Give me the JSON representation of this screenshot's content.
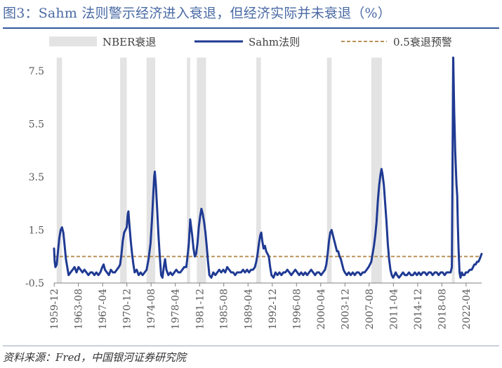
{
  "title": "图3：Sahm 法则警示经济进入衰退，但经济实际并未衰退（%）",
  "source": "资料来源：Fred，中国银河证券研究院",
  "chart_data": {
    "type": "line",
    "ylim": [
      -0.5,
      8.0
    ],
    "yticks": [
      -0.5,
      1.5,
      3.5,
      5.5,
      7.5
    ],
    "ytick_labels": [
      "-0.5",
      "1.5",
      "3.5",
      "5.5",
      "7.5"
    ],
    "xlim": [
      1959.9,
      2024.6
    ],
    "xticks": [
      1959.92,
      1963.58,
      1967.25,
      1970.92,
      1974.58,
      1978.25,
      1981.92,
      1985.58,
      1989.25,
      1992.92,
      1996.58,
      2000.25,
      2003.92,
      2007.58,
      2011.25,
      2014.92,
      2018.58,
      2022.25
    ],
    "xtick_labels": [
      "1959-12",
      "1963-08",
      "1967-04",
      "1970-12",
      "1974-08",
      "1978-04",
      "1981-12",
      "1985-08",
      "1989-04",
      "1992-12",
      "1996-08",
      "2000-04",
      "2003-12",
      "2007-08",
      "2011-04",
      "2014-12",
      "2018-08",
      "2022-04"
    ],
    "legend": {
      "position": "top",
      "items": [
        "NBER衰退",
        "Sahm法则",
        "0.5衰退预警"
      ]
    },
    "recessions": [
      [
        1960.3,
        1961.1
      ],
      [
        1969.9,
        1970.9
      ],
      [
        1973.9,
        1975.2
      ],
      [
        1980.0,
        1980.5
      ],
      [
        1981.5,
        1982.9
      ],
      [
        1990.5,
        1991.2
      ],
      [
        2001.2,
        2001.9
      ],
      [
        2007.9,
        2009.5
      ],
      [
        2020.1,
        2020.4
      ]
    ],
    "threshold": {
      "name": "0.5衰退预警",
      "value": 0.5,
      "color": "#b8925a"
    },
    "colors": {
      "line": "#1f3a93",
      "recession": "#e3e3e3",
      "axis": "#7f7f7f"
    },
    "series": [
      {
        "name": "Sahm法则",
        "points": [
          [
            1959.9,
            0.8
          ],
          [
            1960.0,
            0.3
          ],
          [
            1960.1,
            0.1
          ],
          [
            1960.3,
            0.2
          ],
          [
            1960.5,
            0.7
          ],
          [
            1960.7,
            1.2
          ],
          [
            1960.9,
            1.5
          ],
          [
            1961.1,
            1.6
          ],
          [
            1961.3,
            1.4
          ],
          [
            1961.5,
            0.9
          ],
          [
            1961.7,
            0.4
          ],
          [
            1961.9,
            0.1
          ],
          [
            1962.1,
            -0.2
          ],
          [
            1962.4,
            -0.1
          ],
          [
            1962.7,
            0.0
          ],
          [
            1963.0,
            0.1
          ],
          [
            1963.3,
            -0.1
          ],
          [
            1963.6,
            0.1
          ],
          [
            1963.9,
            0.0
          ],
          [
            1964.2,
            -0.1
          ],
          [
            1964.5,
            0.0
          ],
          [
            1964.8,
            -0.1
          ],
          [
            1965.1,
            -0.2
          ],
          [
            1965.4,
            -0.1
          ],
          [
            1965.7,
            -0.1
          ],
          [
            1966.0,
            -0.2
          ],
          [
            1966.3,
            -0.1
          ],
          [
            1966.6,
            -0.2
          ],
          [
            1966.9,
            -0.1
          ],
          [
            1967.2,
            0.1
          ],
          [
            1967.4,
            0.2
          ],
          [
            1967.6,
            0.0
          ],
          [
            1967.9,
            -0.1
          ],
          [
            1968.2,
            -0.2
          ],
          [
            1968.5,
            0.0
          ],
          [
            1968.8,
            -0.1
          ],
          [
            1969.1,
            -0.1
          ],
          [
            1969.4,
            0.0
          ],
          [
            1969.7,
            0.1
          ],
          [
            1969.9,
            0.2
          ],
          [
            1970.1,
            0.6
          ],
          [
            1970.3,
            1.1
          ],
          [
            1970.5,
            1.4
          ],
          [
            1970.7,
            1.5
          ],
          [
            1970.9,
            1.6
          ],
          [
            1971.05,
            2.1
          ],
          [
            1971.15,
            2.2
          ],
          [
            1971.3,
            1.7
          ],
          [
            1971.5,
            1.1
          ],
          [
            1971.7,
            0.6
          ],
          [
            1971.9,
            0.2
          ],
          [
            1972.1,
            -0.1
          ],
          [
            1972.4,
            0.0
          ],
          [
            1972.7,
            -0.2
          ],
          [
            1973.0,
            -0.1
          ],
          [
            1973.3,
            -0.2
          ],
          [
            1973.6,
            -0.1
          ],
          [
            1973.9,
            0.0
          ],
          [
            1974.2,
            0.4
          ],
          [
            1974.5,
            1.0
          ],
          [
            1974.7,
            1.8
          ],
          [
            1974.9,
            2.8
          ],
          [
            1975.05,
            3.5
          ],
          [
            1975.15,
            3.7
          ],
          [
            1975.3,
            3.2
          ],
          [
            1975.5,
            2.3
          ],
          [
            1975.7,
            1.3
          ],
          [
            1975.9,
            0.5
          ],
          [
            1976.1,
            -0.2
          ],
          [
            1976.3,
            -0.3
          ],
          [
            1976.5,
            0.1
          ],
          [
            1976.7,
            0.4
          ],
          [
            1976.9,
            0.0
          ],
          [
            1977.2,
            -0.2
          ],
          [
            1977.5,
            -0.1
          ],
          [
            1977.8,
            -0.2
          ],
          [
            1978.1,
            -0.1
          ],
          [
            1978.4,
            0.0
          ],
          [
            1978.7,
            -0.1
          ],
          [
            1979.0,
            -0.1
          ],
          [
            1979.3,
            0.0
          ],
          [
            1979.6,
            0.1
          ],
          [
            1979.9,
            0.1
          ],
          [
            1980.1,
            0.5
          ],
          [
            1980.3,
            1.0
          ],
          [
            1980.5,
            1.9
          ],
          [
            1980.6,
            1.7
          ],
          [
            1980.8,
            1.3
          ],
          [
            1981.0,
            0.8
          ],
          [
            1981.2,
            0.5
          ],
          [
            1981.4,
            0.6
          ],
          [
            1981.6,
            1.0
          ],
          [
            1981.8,
            1.6
          ],
          [
            1982.0,
            2.0
          ],
          [
            1982.2,
            2.3
          ],
          [
            1982.4,
            2.1
          ],
          [
            1982.6,
            1.8
          ],
          [
            1982.8,
            1.4
          ],
          [
            1983.0,
            0.9
          ],
          [
            1983.2,
            0.3
          ],
          [
            1983.4,
            -0.2
          ],
          [
            1983.7,
            -0.3
          ],
          [
            1984.0,
            -0.1
          ],
          [
            1984.3,
            -0.2
          ],
          [
            1984.6,
            -0.1
          ],
          [
            1984.9,
            0.0
          ],
          [
            1985.2,
            -0.1
          ],
          [
            1985.5,
            0.0
          ],
          [
            1985.8,
            -0.1
          ],
          [
            1986.1,
            0.1
          ],
          [
            1986.4,
            0.0
          ],
          [
            1986.7,
            -0.1
          ],
          [
            1987.0,
            -0.1
          ],
          [
            1987.3,
            -0.2
          ],
          [
            1987.6,
            -0.1
          ],
          [
            1987.9,
            -0.1
          ],
          [
            1988.2,
            -0.1
          ],
          [
            1988.5,
            0.0
          ],
          [
            1988.8,
            -0.1
          ],
          [
            1989.1,
            0.0
          ],
          [
            1989.4,
            -0.1
          ],
          [
            1989.7,
            0.0
          ],
          [
            1990.0,
            0.0
          ],
          [
            1990.3,
            0.1
          ],
          [
            1990.5,
            0.3
          ],
          [
            1990.7,
            0.6
          ],
          [
            1990.9,
            1.0
          ],
          [
            1991.1,
            1.3
          ],
          [
            1991.25,
            1.4
          ],
          [
            1991.4,
            1.1
          ],
          [
            1991.6,
            0.8
          ],
          [
            1991.8,
            0.9
          ],
          [
            1992.0,
            0.7
          ],
          [
            1992.2,
            0.6
          ],
          [
            1992.4,
            0.5
          ],
          [
            1992.6,
            0.1
          ],
          [
            1992.8,
            -0.2
          ],
          [
            1993.1,
            -0.3
          ],
          [
            1993.4,
            -0.1
          ],
          [
            1993.7,
            -0.2
          ],
          [
            1994.0,
            -0.1
          ],
          [
            1994.3,
            -0.2
          ],
          [
            1994.6,
            -0.1
          ],
          [
            1994.9,
            -0.1
          ],
          [
            1995.2,
            0.0
          ],
          [
            1995.5,
            -0.1
          ],
          [
            1995.8,
            -0.2
          ],
          [
            1996.1,
            -0.1
          ],
          [
            1996.4,
            0.0
          ],
          [
            1996.7,
            -0.1
          ],
          [
            1997.0,
            -0.2
          ],
          [
            1997.3,
            -0.1
          ],
          [
            1997.6,
            -0.2
          ],
          [
            1997.9,
            -0.1
          ],
          [
            1998.2,
            -0.2
          ],
          [
            1998.5,
            -0.1
          ],
          [
            1998.8,
            0.0
          ],
          [
            1999.1,
            -0.1
          ],
          [
            1999.4,
            -0.2
          ],
          [
            1999.7,
            -0.1
          ],
          [
            2000.0,
            -0.1
          ],
          [
            2000.3,
            -0.2
          ],
          [
            2000.6,
            -0.1
          ],
          [
            2000.9,
            0.0
          ],
          [
            2001.1,
            0.2
          ],
          [
            2001.3,
            0.6
          ],
          [
            2001.5,
            1.1
          ],
          [
            2001.7,
            1.4
          ],
          [
            2001.9,
            1.5
          ],
          [
            2002.1,
            1.3
          ],
          [
            2002.3,
            1.1
          ],
          [
            2002.5,
            0.9
          ],
          [
            2002.7,
            0.7
          ],
          [
            2002.9,
            0.7
          ],
          [
            2003.1,
            0.5
          ],
          [
            2003.3,
            0.4
          ],
          [
            2003.5,
            0.2
          ],
          [
            2003.7,
            0.0
          ],
          [
            2003.9,
            -0.1
          ],
          [
            2004.2,
            -0.2
          ],
          [
            2004.5,
            -0.1
          ],
          [
            2004.8,
            -0.2
          ],
          [
            2005.1,
            -0.1
          ],
          [
            2005.4,
            -0.2
          ],
          [
            2005.7,
            -0.1
          ],
          [
            2006.0,
            -0.1
          ],
          [
            2006.3,
            -0.2
          ],
          [
            2006.6,
            -0.1
          ],
          [
            2006.9,
            -0.1
          ],
          [
            2007.2,
            0.0
          ],
          [
            2007.5,
            0.1
          ],
          [
            2007.7,
            0.2
          ],
          [
            2007.9,
            0.3
          ],
          [
            2008.1,
            0.6
          ],
          [
            2008.3,
            0.9
          ],
          [
            2008.5,
            1.3
          ],
          [
            2008.7,
            1.8
          ],
          [
            2008.9,
            2.6
          ],
          [
            2009.1,
            3.2
          ],
          [
            2009.3,
            3.6
          ],
          [
            2009.45,
            3.8
          ],
          [
            2009.6,
            3.6
          ],
          [
            2009.8,
            3.2
          ],
          [
            2010.0,
            2.5
          ],
          [
            2010.2,
            1.8
          ],
          [
            2010.4,
            1.0
          ],
          [
            2010.6,
            0.4
          ],
          [
            2010.8,
            0.0
          ],
          [
            2011.0,
            -0.2
          ],
          [
            2011.2,
            -0.3
          ],
          [
            2011.4,
            -0.2
          ],
          [
            2011.6,
            -0.1
          ],
          [
            2011.8,
            -0.2
          ],
          [
            2012.1,
            -0.3
          ],
          [
            2012.4,
            -0.2
          ],
          [
            2012.7,
            -0.1
          ],
          [
            2013.0,
            -0.2
          ],
          [
            2013.3,
            -0.2
          ],
          [
            2013.6,
            -0.1
          ],
          [
            2013.9,
            -0.2
          ],
          [
            2014.2,
            -0.2
          ],
          [
            2014.5,
            -0.1
          ],
          [
            2014.8,
            -0.2
          ],
          [
            2015.1,
            -0.1
          ],
          [
            2015.4,
            -0.2
          ],
          [
            2015.7,
            -0.1
          ],
          [
            2016.0,
            -0.1
          ],
          [
            2016.3,
            -0.2
          ],
          [
            2016.6,
            -0.1
          ],
          [
            2016.9,
            -0.1
          ],
          [
            2017.2,
            -0.2
          ],
          [
            2017.5,
            -0.1
          ],
          [
            2017.8,
            -0.1
          ],
          [
            2018.1,
            -0.2
          ],
          [
            2018.4,
            -0.1
          ],
          [
            2018.7,
            -0.1
          ],
          [
            2019.0,
            -0.2
          ],
          [
            2019.3,
            -0.1
          ],
          [
            2019.6,
            -0.1
          ],
          [
            2019.9,
            -0.1
          ],
          [
            2020.1,
            0.1
          ],
          [
            2020.3,
            8.0
          ],
          [
            2020.45,
            6.0
          ],
          [
            2020.6,
            4.5
          ],
          [
            2020.8,
            3.2
          ],
          [
            2020.9,
            2.8
          ],
          [
            2021.0,
            1.7
          ],
          [
            2021.1,
            0.8
          ],
          [
            2021.25,
            -0.1
          ],
          [
            2021.4,
            -0.3
          ],
          [
            2021.6,
            -0.1
          ],
          [
            2021.8,
            -0.2
          ],
          [
            2022.0,
            -0.2
          ],
          [
            2022.2,
            -0.1
          ],
          [
            2022.5,
            -0.1
          ],
          [
            2022.8,
            0.0
          ],
          [
            2023.1,
            0.0
          ],
          [
            2023.3,
            0.1
          ],
          [
            2023.5,
            0.2
          ],
          [
            2023.7,
            0.2
          ],
          [
            2023.9,
            0.3
          ],
          [
            2024.1,
            0.3
          ],
          [
            2024.3,
            0.4
          ],
          [
            2024.45,
            0.5
          ],
          [
            2024.6,
            0.6
          ]
        ]
      }
    ]
  }
}
